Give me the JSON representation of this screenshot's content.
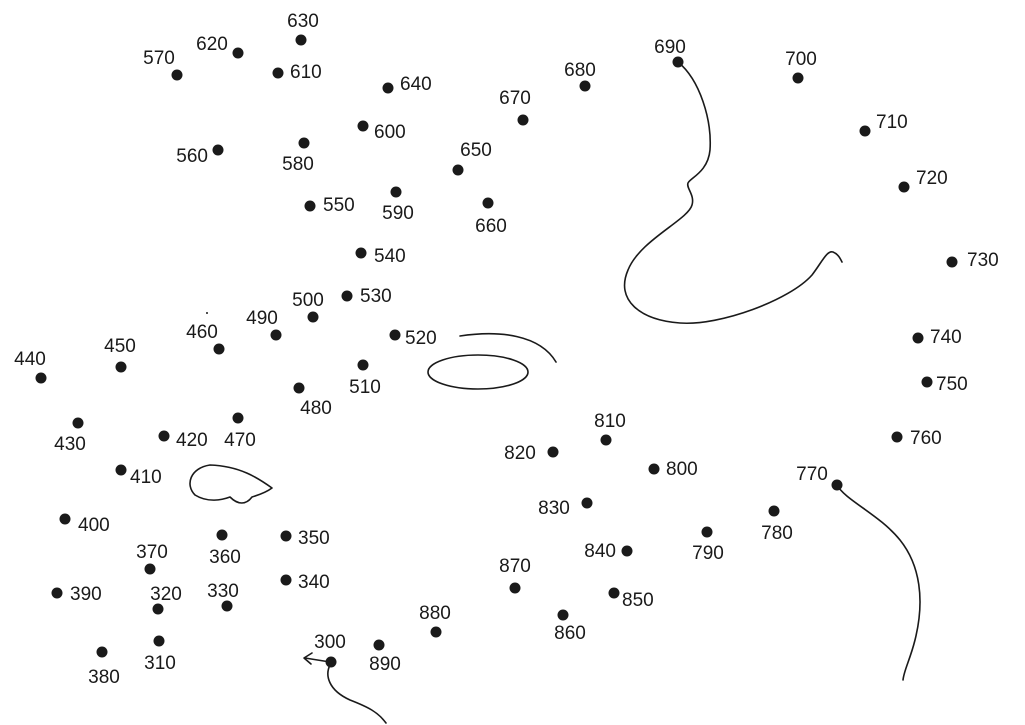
{
  "dots": [
    {
      "label": "300"
    },
    {
      "label": "310"
    },
    {
      "label": "320"
    },
    {
      "label": "330"
    },
    {
      "label": "340"
    },
    {
      "label": "350"
    },
    {
      "label": "360"
    },
    {
      "label": "370"
    },
    {
      "label": "380"
    },
    {
      "label": "390"
    },
    {
      "label": "400"
    },
    {
      "label": "410"
    },
    {
      "label": "420"
    },
    {
      "label": "430"
    },
    {
      "label": "440"
    },
    {
      "label": "450"
    },
    {
      "label": "460"
    },
    {
      "label": "470"
    },
    {
      "label": "480"
    },
    {
      "label": "490"
    },
    {
      "label": "500"
    },
    {
      "label": "510"
    },
    {
      "label": "520"
    },
    {
      "label": "530"
    },
    {
      "label": "540"
    },
    {
      "label": "550"
    },
    {
      "label": "560"
    },
    {
      "label": "570"
    },
    {
      "label": "580"
    },
    {
      "label": "590"
    },
    {
      "label": "600"
    },
    {
      "label": "610"
    },
    {
      "label": "620"
    },
    {
      "label": "630"
    },
    {
      "label": "640"
    },
    {
      "label": "650"
    },
    {
      "label": "660"
    },
    {
      "label": "670"
    },
    {
      "label": "680"
    },
    {
      "label": "690"
    },
    {
      "label": "700"
    },
    {
      "label": "710"
    },
    {
      "label": "720"
    },
    {
      "label": "730"
    },
    {
      "label": "740"
    },
    {
      "label": "750"
    },
    {
      "label": "760"
    },
    {
      "label": "770"
    },
    {
      "label": "780"
    },
    {
      "label": "790"
    },
    {
      "label": "800"
    },
    {
      "label": "810"
    },
    {
      "label": "820"
    },
    {
      "label": "830"
    },
    {
      "label": "840"
    },
    {
      "label": "850"
    },
    {
      "label": "860"
    },
    {
      "label": "870"
    },
    {
      "label": "880"
    },
    {
      "label": "890"
    }
  ]
}
